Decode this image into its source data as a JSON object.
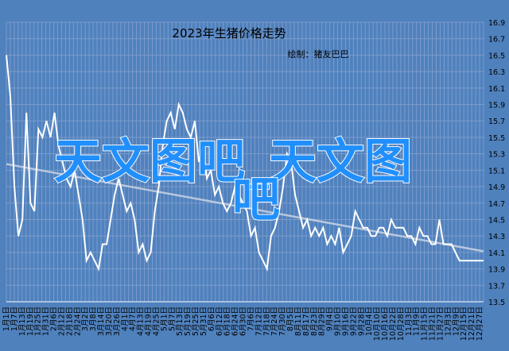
{
  "chart_data": {
    "type": "line",
    "title": "2023年生猪价格走势",
    "subtitle": "绘制：猪友巴巴",
    "xlabel": "",
    "ylabel": "",
    "ylim": [
      13.5,
      16.9
    ],
    "y_ticks": [
      "16.9",
      "16.7",
      "16.5",
      "16.3",
      "16.1",
      "15.9",
      "15.7",
      "15.5",
      "15.3",
      "15.1",
      "14.9",
      "14.7",
      "14.5",
      "14.3",
      "14.1",
      "13.9",
      "13.7",
      "13.5"
    ],
    "x_ticks": [
      "1月1日",
      "1月4日",
      "1月7日",
      "1月10日",
      "1月13日",
      "1月16日",
      "1月19日",
      "1月22日",
      "1月25日",
      "1月28日",
      "1月31日",
      "2月3日",
      "2月6日",
      "2月9日",
      "2月12日",
      "2月15日",
      "2月18日",
      "2月21日",
      "2月24日",
      "2月27日",
      "3月2日",
      "3月5日",
      "3月8日",
      "3月11日",
      "3月14日",
      "3月17日",
      "3月20日",
      "3月23日",
      "3月26日",
      "3月29日",
      "4月1日",
      "4月4日",
      "4月7日",
      "4月10日",
      "4月13日",
      "4月16日",
      "4月19日",
      "4月22日",
      "4月25日",
      "4月28日",
      "5月1日",
      "5月4日",
      "5月7日",
      "5月10日",
      "5月13日",
      "5月16日",
      "5月19日",
      "5月22日",
      "5月25日",
      "5月28日",
      "5月31日",
      "6月3日",
      "6月6日",
      "6月9日",
      "6月12日",
      "6月15日",
      "6月18日",
      "6月21日",
      "6月24日",
      "6月27日",
      "6月30日",
      "7月3日",
      "7月6日",
      "7月9日",
      "7月12日",
      "7月15日",
      "7月18日",
      "7月21日",
      "7月24日",
      "7月27日",
      "7月30日",
      "8月2日",
      "8月5日",
      "8月8日",
      "8月11日",
      "8月14日",
      "8月17日",
      "8月20日",
      "8月23日",
      "8月26日",
      "8月29日",
      "9月1日",
      "9月4日",
      "9月7日",
      "9月10日",
      "9月13日",
      "9月16日",
      "9月19日",
      "9月22日",
      "9月25日",
      "9月28日",
      "10月1日",
      "10月4日",
      "10月7日",
      "10月10日",
      "10月13日",
      "10月16日",
      "10月19日",
      "10月22日",
      "10月25日",
      "10月28日",
      "10月31日",
      "11月3日",
      "11月6日",
      "11月9日",
      "11月12日",
      "11月15日",
      "11月18日",
      "11月21日",
      "11月24日",
      "11月27日",
      "11月30日",
      "12月3日",
      "12月6日",
      "12月9日",
      "12月12日",
      "12月15日",
      "12月18日",
      "12月21日",
      "12月24日",
      "12月27日",
      "12月30日"
    ],
    "series": [
      {
        "values": [
          16.5,
          16.0,
          14.9,
          14.3,
          14.5,
          15.8,
          14.7,
          14.6,
          15.6,
          15.5,
          15.7,
          15.5,
          15.8,
          15.4,
          15.2,
          15.0,
          14.9,
          15.1,
          14.8,
          14.5,
          14.0,
          14.1,
          14.0,
          13.9,
          14.2,
          14.2,
          14.5,
          14.8,
          15.0,
          14.8,
          14.6,
          14.7,
          14.5,
          14.1,
          14.2,
          14.0,
          14.1,
          14.6,
          14.9,
          15.4,
          15.7,
          15.8,
          15.6,
          15.9,
          15.8,
          15.6,
          15.5,
          15.7,
          15.2,
          15.4,
          15.0,
          15.1,
          14.8,
          14.9,
          14.7,
          14.6,
          14.7,
          14.9,
          14.8,
          14.7,
          14.6,
          14.3,
          14.4,
          14.1,
          14.0,
          13.9,
          14.3,
          14.4,
          14.6,
          14.9,
          15.3,
          15.2,
          14.8,
          14.6,
          14.4,
          14.5,
          14.3,
          14.4,
          14.3,
          14.4,
          14.2,
          14.3,
          14.2,
          14.4,
          14.1,
          14.2,
          14.3,
          14.6,
          14.5,
          14.4,
          14.4,
          14.3,
          14.3,
          14.4,
          14.4,
          14.3,
          14.5,
          14.4,
          14.4,
          14.4,
          14.3,
          14.3,
          14.2,
          14.4,
          14.3,
          14.3,
          14.2,
          14.2,
          14.5,
          14.2,
          14.2,
          14.2,
          14.1,
          14.0,
          14.0,
          14.0,
          14.0,
          14.0,
          14.0,
          14.0
        ]
      }
    ],
    "grid": true,
    "legend": "none"
  },
  "watermark": {
    "line1": "天文图吧_天文图",
    "line2": "吧"
  },
  "colors": {
    "background": "#4f81bd",
    "line": "#ffffff",
    "trend": "#c8d3e3",
    "grid": "#7c9ccc",
    "text": "#000000",
    "watermark": "#1e90ff"
  }
}
